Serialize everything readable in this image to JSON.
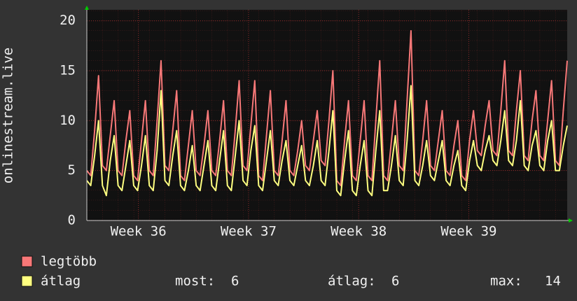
{
  "chart_data": {
    "type": "line",
    "ylabel": "onlinestream.live",
    "x": [
      0,
      0.25,
      0.5,
      0.75,
      1,
      1.25,
      1.5,
      1.75,
      2,
      2.25,
      2.5,
      2.75,
      3,
      3.25,
      3.5,
      3.75,
      4,
      4.25,
      4.5,
      4.75,
      5,
      5.25,
      5.5,
      5.75,
      6,
      6.25,
      6.5,
      6.75,
      7,
      7.25,
      7.5,
      7.75,
      8,
      8.25,
      8.5,
      8.75,
      9,
      9.25,
      9.5,
      9.75,
      10,
      10.25,
      10.5,
      10.75,
      11,
      11.25,
      11.5,
      11.75,
      12,
      12.25,
      12.5,
      12.75,
      13,
      13.25,
      13.5,
      13.75,
      14,
      14.25,
      14.5,
      14.75,
      15,
      15.25,
      15.5,
      15.75,
      16,
      16.25,
      16.5,
      16.75,
      17,
      17.25,
      17.5,
      17.75,
      18,
      18.25,
      18.5,
      18.75,
      19,
      19.25,
      19.5,
      19.75,
      20,
      20.25,
      20.5,
      20.75,
      21,
      21.25,
      21.5,
      21.75,
      22,
      22.25,
      22.5,
      22.75,
      23,
      23.25,
      23.5,
      23.75,
      24,
      24.25,
      24.5,
      24.75,
      25,
      25.25,
      25.5,
      25.75,
      26,
      26.25,
      26.5,
      26.75,
      27,
      27.25,
      27.5,
      27.75,
      28,
      28.25,
      28.5,
      28.75,
      29,
      29.25,
      29.5,
      29.75,
      30,
      30.25,
      30.5,
      30.75
    ],
    "series": [
      {
        "name": "legtöbb",
        "color": "#f87878",
        "values": [
          5,
          4.5,
          9,
          14.5,
          5.5,
          5,
          8.5,
          12,
          5,
          4.5,
          8,
          11,
          4.5,
          4,
          8,
          12,
          5,
          4.5,
          10,
          16,
          5.5,
          5,
          9,
          13,
          4.5,
          4,
          7.5,
          11,
          5,
          4.5,
          7.5,
          11,
          5,
          4.5,
          8,
          12,
          5,
          4.5,
          9,
          14,
          5.5,
          5,
          9.5,
          14,
          4.5,
          4,
          8.5,
          13,
          5,
          4.5,
          8,
          12,
          5,
          4.5,
          7,
          10,
          5.5,
          5,
          8,
          11,
          6,
          5.5,
          10,
          15,
          4,
          3.5,
          8,
          12,
          4.5,
          4,
          8,
          12,
          4.5,
          4,
          10,
          16,
          4.5,
          4,
          8,
          12,
          5.5,
          5,
          12,
          19,
          5,
          4.5,
          8,
          12,
          5.5,
          5,
          8,
          11,
          5,
          4.5,
          7.5,
          10,
          4.5,
          4,
          8,
          11,
          7,
          6.5,
          9.5,
          12,
          7,
          6.5,
          11,
          16,
          7,
          6.5,
          11,
          15,
          6.5,
          6,
          10,
          13,
          6.5,
          6,
          10,
          14,
          6,
          5.5,
          11,
          16
        ]
      },
      {
        "name": "átlag",
        "color": "#ffff80",
        "values": [
          4,
          3.5,
          6.5,
          10,
          3.5,
          2.5,
          6,
          8.5,
          3.5,
          3,
          5.5,
          8,
          3.5,
          3,
          5.5,
          8.5,
          3.5,
          3,
          7,
          13,
          4,
          3.5,
          6.5,
          9,
          3.5,
          3,
          5,
          7.5,
          3.5,
          3,
          5.5,
          8,
          3.5,
          3,
          6,
          9,
          3.5,
          3,
          6.5,
          10,
          4,
          3.5,
          7,
          9.5,
          3.5,
          3,
          6,
          9,
          4,
          3.5,
          6,
          8,
          4,
          3.5,
          5.5,
          7.5,
          4,
          3.5,
          5.5,
          8,
          4,
          3.5,
          7,
          11,
          3,
          2.5,
          6,
          9,
          3,
          2.5,
          5.5,
          8,
          3,
          2.5,
          7,
          11,
          3,
          3,
          5.5,
          8.5,
          4,
          3.5,
          8,
          13.5,
          4,
          3.5,
          5.5,
          8,
          4.5,
          4,
          6,
          8,
          4,
          3.5,
          5.5,
          7,
          3.5,
          3,
          6,
          8,
          5.5,
          5,
          7,
          8.5,
          6,
          5.5,
          8,
          11,
          6,
          5.5,
          8,
          12,
          5.5,
          5,
          7.5,
          9,
          5.5,
          5,
          8,
          10,
          5,
          5,
          7.5,
          9.5
        ]
      }
    ],
    "xlim": [
      0,
      30.75
    ],
    "xticks": [
      {
        "value": 3.3,
        "label": "Week 36"
      },
      {
        "value": 10.35,
        "label": "Week 37"
      },
      {
        "value": 17.4,
        "label": "Week 38"
      },
      {
        "value": 24.45,
        "label": "Week 39"
      }
    ],
    "ylim": [
      0,
      21.1
    ],
    "yticks": [
      0,
      5,
      10,
      15,
      20
    ],
    "grid": true,
    "legend_stats": [
      {
        "label": "most:",
        "value": 6
      },
      {
        "label": "átlag:",
        "value": 6
      },
      {
        "label": "max:",
        "value": 14
      }
    ]
  }
}
